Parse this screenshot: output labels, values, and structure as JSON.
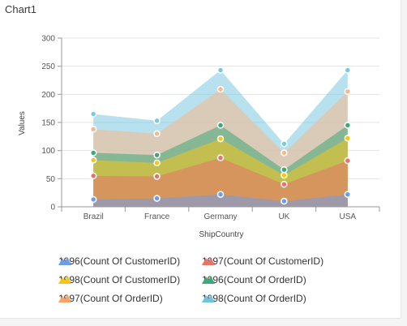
{
  "chart_data": {
    "type": "area",
    "title": "Chart1",
    "xlabel": "ShipCountry",
    "ylabel": "Values",
    "categories": [
      "Brazil",
      "France",
      "Germany",
      "UK",
      "USA"
    ],
    "ylim": [
      0,
      300
    ],
    "yticks": [
      0,
      50,
      100,
      150,
      200,
      250,
      300
    ],
    "grid": true,
    "legend_position": "bottom",
    "series": [
      {
        "name": "1998(Count Of OrderID)",
        "values": [
          165,
          153,
          243,
          112,
          243
        ],
        "color": "#7cc9e1"
      },
      {
        "name": "1997(Count Of OrderID)",
        "values": [
          138,
          130,
          209,
          96,
          205
        ],
        "color": "#f7b98b"
      },
      {
        "name": "1996(Count Of OrderID)",
        "values": [
          96,
          92,
          145,
          66,
          145
        ],
        "color": "#3fa876"
      },
      {
        "name": "1998(Count Of CustomerID)",
        "values": [
          83,
          78,
          121,
          56,
          122
        ],
        "color": "#f5c518"
      },
      {
        "name": "1997(Count Of CustomerID)",
        "values": [
          55,
          54,
          87,
          40,
          82
        ],
        "color": "#e8736a"
      },
      {
        "name": "1996(Count Of CustomerID)",
        "values": [
          13,
          15,
          22,
          10,
          22
        ],
        "color": "#6d9ce8"
      }
    ],
    "legend": [
      {
        "name": "1996(Count Of CustomerID)",
        "color": "#6d9ce8"
      },
      {
        "name": "1997(Count Of CustomerID)",
        "color": "#e8736a"
      },
      {
        "name": "1998(Count Of CustomerID)",
        "color": "#f5c518"
      },
      {
        "name": "1996(Count Of OrderID)",
        "color": "#3fa876"
      },
      {
        "name": "1997(Count Of OrderID)",
        "color": "#f7a36a"
      },
      {
        "name": "1998(Count Of OrderID)",
        "color": "#6fc3dc"
      }
    ]
  }
}
